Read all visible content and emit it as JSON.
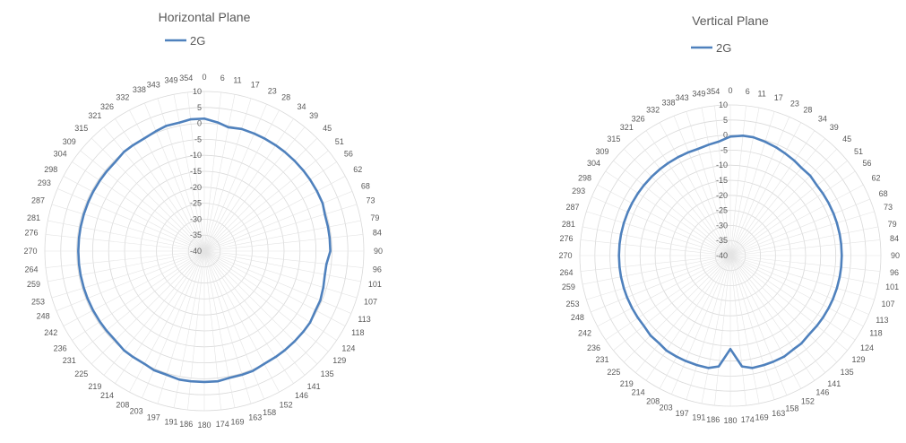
{
  "chart_data": [
    {
      "type": "radar",
      "title": "Horizontal Plane",
      "legend": "top",
      "grid": true,
      "angles": [
        0,
        6,
        11,
        17,
        23,
        28,
        34,
        39,
        45,
        51,
        56,
        62,
        68,
        73,
        79,
        84,
        90,
        96,
        101,
        107,
        113,
        118,
        124,
        129,
        135,
        141,
        146,
        152,
        158,
        163,
        169,
        174,
        180,
        186,
        191,
        197,
        203,
        208,
        214,
        219,
        225,
        231,
        236,
        242,
        248,
        253,
        259,
        264,
        270,
        276,
        281,
        287,
        293,
        298,
        304,
        309,
        315,
        321,
        326,
        332,
        338,
        343,
        349,
        354
      ],
      "angle_labels": [
        "0",
        "6",
        "11",
        "17",
        "23",
        "28",
        "34",
        "39",
        "45",
        "51",
        "56",
        "62",
        "68",
        "73",
        "79",
        "84",
        "90",
        "96",
        "101",
        "107",
        "113",
        "118",
        "124",
        "129",
        "135",
        "141",
        "146",
        "152",
        "158",
        "163",
        "169",
        "174",
        "180",
        "186",
        "191",
        "197",
        "203",
        "208",
        "214",
        "219",
        "225",
        "231",
        "236",
        "242",
        "248",
        "253",
        "259",
        "264",
        "270",
        "276",
        "281",
        "287",
        "293",
        "298",
        "304",
        "309",
        "315",
        "321",
        "326",
        "332",
        "338",
        "343",
        "349",
        "354"
      ],
      "rlim": [
        -40,
        10
      ],
      "r_ticks": [
        "10",
        "5",
        "0",
        "-5",
        "-10",
        "-15",
        "-20",
        "-25",
        "-30",
        "-35",
        "-40"
      ],
      "series": [
        {
          "name": "2G",
          "color": "#4f81bd",
          "values": [
            1.5,
            0.5,
            -0.5,
            0,
            0,
            0,
            0,
            0,
            0,
            0,
            0,
            0,
            0,
            -0.5,
            -0.5,
            -0.5,
            -0.5,
            -1.5,
            -1.5,
            -1,
            -0.5,
            -0.5,
            0,
            0,
            0,
            0,
            0,
            0,
            0.5,
            0.5,
            0.5,
            1,
            1,
            1,
            1,
            0.5,
            0.5,
            0,
            0,
            0,
            -0.5,
            -0.5,
            -0.5,
            -0.5,
            -0.5,
            -0.5,
            -0.5,
            -0.5,
            -0.5,
            -0.5,
            -0.5,
            -0.5,
            -0.5,
            -0.5,
            -0.5,
            -0.5,
            -0.5,
            0,
            0,
            0,
            0.5,
            1,
            1,
            1.5
          ]
        }
      ]
    },
    {
      "type": "radar",
      "title": "Vertical Plane",
      "legend": "top",
      "grid": true,
      "angles": [
        0,
        6,
        11,
        17,
        23,
        28,
        34,
        39,
        45,
        51,
        56,
        62,
        68,
        73,
        79,
        84,
        90,
        96,
        101,
        107,
        113,
        118,
        124,
        129,
        135,
        141,
        146,
        152,
        158,
        163,
        169,
        174,
        180,
        186,
        191,
        197,
        203,
        208,
        214,
        219,
        225,
        231,
        236,
        242,
        248,
        253,
        259,
        264,
        270,
        276,
        281,
        287,
        293,
        298,
        304,
        309,
        315,
        321,
        326,
        332,
        338,
        343,
        349,
        354
      ],
      "angle_labels": [
        "0",
        "6",
        "11",
        "17",
        "23",
        "28",
        "34",
        "39",
        "45",
        "51",
        "56",
        "62",
        "68",
        "73",
        "79",
        "84",
        "90",
        "96",
        "101",
        "107",
        "113",
        "118",
        "124",
        "129",
        "135",
        "141",
        "146",
        "152",
        "158",
        "163",
        "169",
        "174",
        "180",
        "186",
        "191",
        "197",
        "203",
        "208",
        "214",
        "219",
        "225",
        "231",
        "236",
        "242",
        "248",
        "253",
        "259",
        "264",
        "270",
        "276",
        "281",
        "287",
        "293",
        "298",
        "304",
        "309",
        "315",
        "321",
        "326",
        "332",
        "338",
        "343",
        "349",
        "354"
      ],
      "rlim": [
        -40,
        10
      ],
      "r_ticks": [
        "10",
        "5",
        "0",
        "-5",
        "-10",
        "-15",
        "-20",
        "-25",
        "-30",
        "-35",
        "-40"
      ],
      "series": [
        {
          "name": "2G",
          "color": "#4f81bd",
          "values": [
            -0.5,
            0,
            0,
            -0.5,
            -1,
            -1.5,
            -2,
            -2.5,
            -2.5,
            -3,
            -3,
            -3,
            -3,
            -3,
            -3,
            -3,
            -3,
            -3,
            -3,
            -3,
            -3,
            -3,
            -3,
            -3,
            -3,
            -2.5,
            -2.5,
            -2,
            -2,
            -2,
            -2,
            -3,
            -9,
            -3,
            -2,
            -2,
            -2,
            -2,
            -2,
            -2.5,
            -2.5,
            -3,
            -3,
            -3,
            -3,
            -3,
            -3,
            -3,
            -3,
            -3,
            -3,
            -3,
            -3,
            -3,
            -3,
            -3,
            -3,
            -3,
            -3,
            -3,
            -3,
            -3,
            -2.5,
            -2
          ]
        }
      ]
    }
  ]
}
